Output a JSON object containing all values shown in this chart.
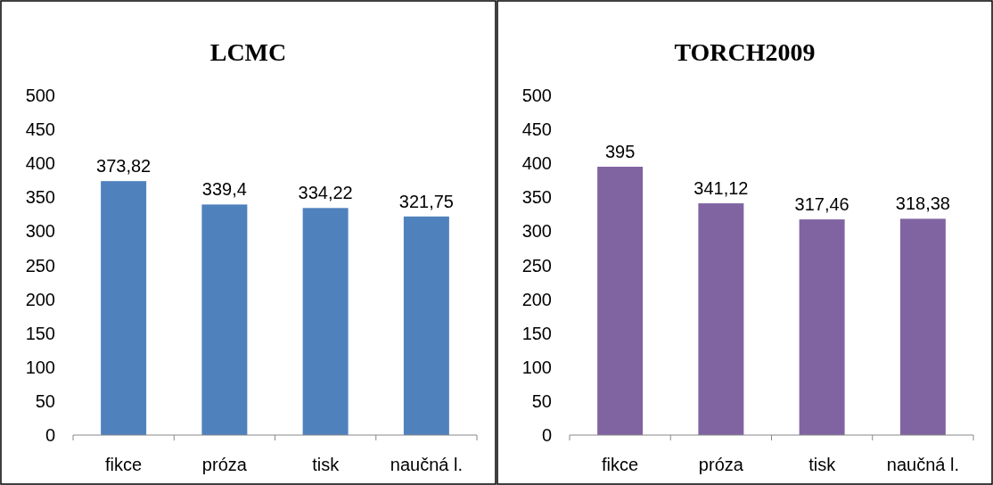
{
  "chart_data": [
    {
      "type": "bar",
      "title": "LCMC",
      "categories": [
        "fikce",
        "próza",
        "tisk",
        "naučná l."
      ],
      "series": [
        {
          "color": "#4f81bd",
          "values": [
            373.82,
            339.4,
            334.22,
            321.75
          ],
          "value_labels": [
            "373,82",
            "339,4",
            "334,22",
            "321,75"
          ]
        }
      ],
      "ylim": [
        0,
        500
      ],
      "yticks": [
        0,
        50,
        100,
        150,
        200,
        250,
        300,
        350,
        400,
        450,
        500
      ]
    },
    {
      "type": "bar",
      "title": "TORCH2009",
      "categories": [
        "fikce",
        "próza",
        "tisk",
        "naučná l."
      ],
      "series": [
        {
          "color": "#8064a2",
          "values": [
            395,
            341.12,
            317.46,
            318.38
          ],
          "value_labels": [
            "395",
            "341,12",
            "317,46",
            "318,38"
          ]
        }
      ],
      "ylim": [
        0,
        500
      ],
      "yticks": [
        0,
        50,
        100,
        150,
        200,
        250,
        300,
        350,
        400,
        450,
        500
      ]
    }
  ]
}
